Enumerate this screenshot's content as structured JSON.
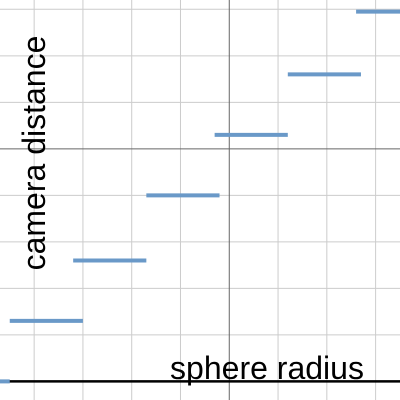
{
  "chart_data": {
    "type": "line",
    "title": "",
    "xlabel": "sphere radius",
    "ylabel": "camera distance",
    "xlim": [
      0.3,
      8.5
    ],
    "ylim": [
      -0.4,
      8.2
    ],
    "grid": true,
    "minor_grid_step": 1,
    "major_grid_step": 5,
    "tick_labels_shown": false,
    "colors": {
      "series": "#6a99c8",
      "minor_grid": "#cccccc",
      "major_grid": "#666666",
      "axis": "#000000"
    },
    "series": [
      {
        "style": "horizontal-steps",
        "segments": [
          {
            "x0": 0.3,
            "x1": 0.5,
            "y": 0.0
          },
          {
            "x0": 0.5,
            "x1": 2.0,
            "y": 1.3
          },
          {
            "x0": 1.8,
            "x1": 3.3,
            "y": 2.6
          },
          {
            "x0": 3.3,
            "x1": 4.8,
            "y": 4.0
          },
          {
            "x0": 4.7,
            "x1": 6.2,
            "y": 5.3
          },
          {
            "x0": 6.2,
            "x1": 7.7,
            "y": 6.6
          },
          {
            "x0": 7.6,
            "x1": 8.5,
            "y": 7.95
          }
        ]
      }
    ]
  }
}
